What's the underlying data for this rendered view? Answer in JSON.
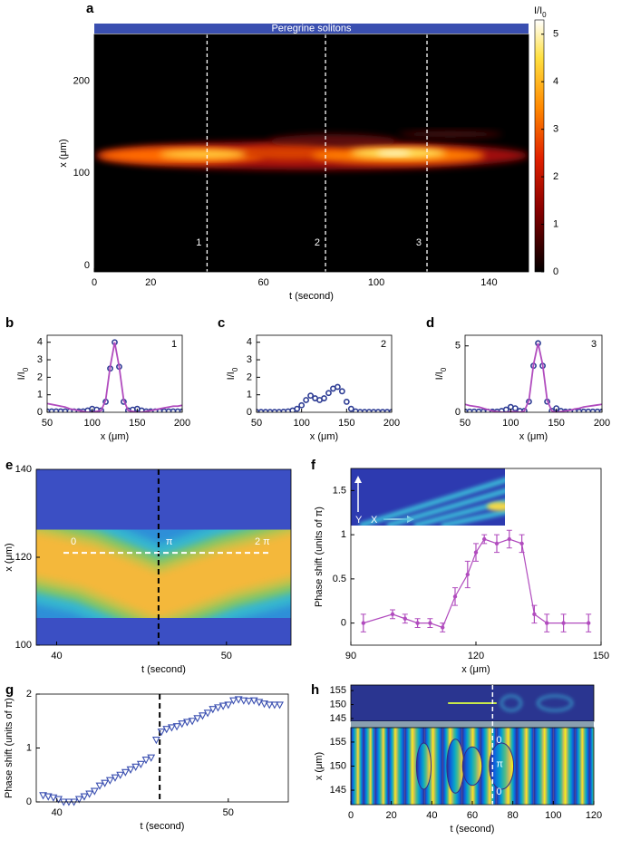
{
  "chart_data": [
    {
      "panel": "a",
      "type": "heatmap",
      "title": "Peregrine solitons",
      "xlabel": "t (second)",
      "ylabel": "x (μm)",
      "xlim": [
        0,
        154
      ],
      "ylim": [
        -7,
        251
      ],
      "xticks": [
        0,
        20,
        60,
        100,
        140
      ],
      "yticks": [
        0,
        100,
        200
      ],
      "clabel": "I/I",
      "clabel_sub": "0",
      "clim": [
        0,
        5.3
      ],
      "cticks": [
        0,
        1,
        2,
        3,
        4,
        5
      ],
      "markers": [
        {
          "value": 40,
          "label": "1"
        },
        {
          "value": 82,
          "label": "2"
        },
        {
          "value": 118,
          "label": "3"
        }
      ]
    },
    {
      "panel": "b",
      "type": "line",
      "label": "1",
      "xlabel": "x (μm)",
      "ylabel": "I/I",
      "ylabel_sub": "0",
      "x": [
        50,
        55,
        60,
        65,
        70,
        75,
        80,
        85,
        90,
        95,
        100,
        105,
        110,
        115,
        120,
        125,
        130,
        135,
        140,
        145,
        150,
        155,
        160,
        165,
        170,
        175,
        180,
        185,
        190,
        195,
        200
      ],
      "series": [
        {
          "color": "#2e3d94",
          "style": "dots",
          "values": [
            0.05,
            0.05,
            0.05,
            0.05,
            0.05,
            0.05,
            0.05,
            0.05,
            0.05,
            0.1,
            0.2,
            0.15,
            0.1,
            0.6,
            2.5,
            4.0,
            2.6,
            0.6,
            0.1,
            0.15,
            0.2,
            0.1,
            0.05,
            0.05,
            0.05,
            0.05,
            0.05,
            0.05,
            0.05,
            0.05,
            0.05
          ]
        },
        {
          "color": "#b14cbe",
          "style": "line",
          "values": [
            0.5,
            0.45,
            0.4,
            0.35,
            0.3,
            0.2,
            0.15,
            0.1,
            0.05,
            0,
            0,
            0.05,
            0.1,
            0.7,
            2.6,
            4.0,
            2.6,
            0.7,
            0.1,
            0.05,
            0,
            0,
            0.05,
            0.1,
            0.15,
            0.2,
            0.25,
            0.3,
            0.35,
            0.35,
            0.4
          ]
        }
      ],
      "xlim": [
        50,
        200
      ],
      "ylim": [
        0,
        4.4
      ],
      "xticks": [
        50,
        100,
        150,
        200
      ],
      "yticks": [
        0,
        1,
        2,
        3,
        4
      ]
    },
    {
      "panel": "c",
      "type": "line",
      "label": "2",
      "xlabel": "x (μm)",
      "ylabel": "I/I",
      "ylabel_sub": "0",
      "x": [
        50,
        55,
        60,
        65,
        70,
        75,
        80,
        85,
        90,
        95,
        100,
        105,
        110,
        115,
        120,
        125,
        130,
        135,
        140,
        145,
        150,
        155,
        160,
        165,
        170,
        175,
        180,
        185,
        190,
        195,
        200
      ],
      "series": [
        {
          "color": "#2e3d94",
          "style": "dots",
          "values": [
            0.02,
            0.02,
            0.02,
            0.02,
            0.02,
            0.02,
            0.03,
            0.05,
            0.1,
            0.2,
            0.4,
            0.7,
            0.95,
            0.8,
            0.7,
            0.8,
            1.1,
            1.35,
            1.45,
            1.2,
            0.6,
            0.2,
            0.05,
            0.02,
            0.02,
            0.02,
            0.02,
            0.02,
            0.02,
            0.02,
            0.02
          ]
        }
      ],
      "xlim": [
        50,
        200
      ],
      "ylim": [
        0,
        4.4
      ],
      "xticks": [
        50,
        100,
        150,
        200
      ],
      "yticks": [
        0,
        1,
        2,
        3,
        4
      ]
    },
    {
      "panel": "d",
      "type": "line",
      "label": "3",
      "xlabel": "x (μm)",
      "ylabel": "I/I",
      "ylabel_sub": "0",
      "x": [
        50,
        55,
        60,
        65,
        70,
        75,
        80,
        85,
        90,
        95,
        100,
        105,
        110,
        115,
        120,
        125,
        130,
        135,
        140,
        145,
        150,
        155,
        160,
        165,
        170,
        175,
        180,
        185,
        190,
        195,
        200
      ],
      "series": [
        {
          "color": "#2e3d94",
          "style": "dots",
          "values": [
            0.05,
            0.05,
            0.05,
            0.05,
            0.05,
            0.05,
            0.05,
            0.05,
            0.1,
            0.2,
            0.4,
            0.3,
            0.1,
            0.1,
            0.8,
            3.5,
            5.2,
            3.5,
            0.8,
            0.1,
            0.3,
            0.1,
            0.05,
            0.05,
            0.05,
            0.05,
            0.05,
            0.05,
            0.05,
            0.05,
            0.05
          ]
        },
        {
          "color": "#b14cbe",
          "style": "line",
          "values": [
            0.6,
            0.5,
            0.45,
            0.4,
            0.3,
            0.2,
            0.1,
            0.05,
            0,
            0,
            0.05,
            0.05,
            0,
            0.1,
            0.9,
            3.6,
            5.2,
            3.6,
            0.9,
            0.1,
            0,
            0.05,
            0.1,
            0.15,
            0.25,
            0.3,
            0.4,
            0.45,
            0.5,
            0.55,
            0.6
          ]
        }
      ],
      "xlim": [
        50,
        200
      ],
      "ylim": [
        0,
        5.8
      ],
      "xticks": [
        50,
        100,
        150,
        200
      ],
      "yticks": [
        0,
        5
      ]
    },
    {
      "panel": "e",
      "type": "heatmap",
      "xlabel": "t (second)",
      "ylabel": "x (μm)",
      "xlim": [
        38.8,
        53.8
      ],
      "ylim": [
        100,
        140
      ],
      "xticks": [
        40,
        50
      ],
      "yticks": [
        100,
        120,
        140
      ],
      "vline": 46,
      "hline": 121,
      "annotations": [
        "0",
        "π",
        "2 π"
      ]
    },
    {
      "panel": "f",
      "type": "errorbar",
      "xlabel": "x (μm)",
      "ylabel": "Phase shift (units of π)",
      "color": "#b14cbe",
      "x": [
        93,
        100,
        103,
        106,
        109,
        112,
        115,
        118,
        120,
        122,
        125,
        128,
        131,
        134,
        137,
        141,
        147
      ],
      "values": [
        0,
        0.1,
        0.05,
        0,
        0,
        -0.05,
        0.3,
        0.55,
        0.8,
        0.95,
        0.9,
        0.95,
        0.9,
        0.1,
        0,
        0,
        0
      ],
      "errors": [
        0.1,
        0.05,
        0.05,
        0.05,
        0.05,
        0.05,
        0.1,
        0.15,
        0.1,
        0.05,
        0.1,
        0.1,
        0.1,
        0.1,
        0.1,
        0.1,
        0.1
      ],
      "xlim": [
        90,
        150
      ],
      "ylim": [
        -0.25,
        1.75
      ],
      "xticks": [
        90,
        120,
        150
      ],
      "yticks": [
        0,
        0.5,
        1,
        1.5
      ],
      "inset_labels": [
        "Y",
        "X"
      ]
    },
    {
      "panel": "g",
      "type": "scatter",
      "xlabel": "t (second)",
      "ylabel": "Phase shift (units of π)",
      "color": "#3a4fb0",
      "x": [
        39.2,
        39.5,
        39.8,
        40.1,
        40.4,
        40.7,
        41.0,
        41.3,
        41.6,
        41.9,
        42.2,
        42.5,
        42.8,
        43.1,
        43.4,
        43.7,
        44.0,
        44.3,
        44.6,
        44.9,
        45.2,
        45.5,
        45.8,
        46.1,
        46.4,
        46.7,
        47.0,
        47.3,
        47.6,
        47.9,
        48.2,
        48.5,
        48.8,
        49.1,
        49.4,
        49.7,
        50.0,
        50.3,
        50.6,
        50.9,
        51.2,
        51.5,
        51.8,
        52.1,
        52.4,
        52.7,
        53.0
      ],
      "values": [
        0.12,
        0.1,
        0.08,
        0.05,
        0,
        0,
        0,
        0.05,
        0.1,
        0.15,
        0.2,
        0.3,
        0.35,
        0.4,
        0.45,
        0.5,
        0.55,
        0.6,
        0.65,
        0.7,
        0.78,
        0.82,
        1.15,
        1.3,
        1.35,
        1.38,
        1.4,
        1.45,
        1.48,
        1.5,
        1.55,
        1.6,
        1.65,
        1.72,
        1.75,
        1.78,
        1.8,
        1.88,
        1.9,
        1.88,
        1.87,
        1.88,
        1.85,
        1.82,
        1.8,
        1.8,
        1.8
      ],
      "xlim": [
        38.8,
        53.5
      ],
      "ylim": [
        0,
        2
      ],
      "xticks": [
        40,
        50
      ],
      "yticks": [
        0,
        1,
        2
      ],
      "vline": 46
    },
    {
      "panel": "h",
      "type": "phasemap",
      "xlabel": "t (second)",
      "ylabel": "x (μm)",
      "xlim": [
        0,
        120
      ],
      "ylim": [
        142,
        158
      ],
      "xticks": [
        0,
        20,
        40,
        60,
        80,
        100,
        120
      ],
      "yticks": [
        145,
        150,
        155
      ],
      "strip_ylim": [
        144,
        157
      ],
      "strip_yticks": [
        145,
        150,
        155
      ],
      "vline": 70,
      "annotations": [
        "0",
        "π",
        "0"
      ]
    }
  ]
}
